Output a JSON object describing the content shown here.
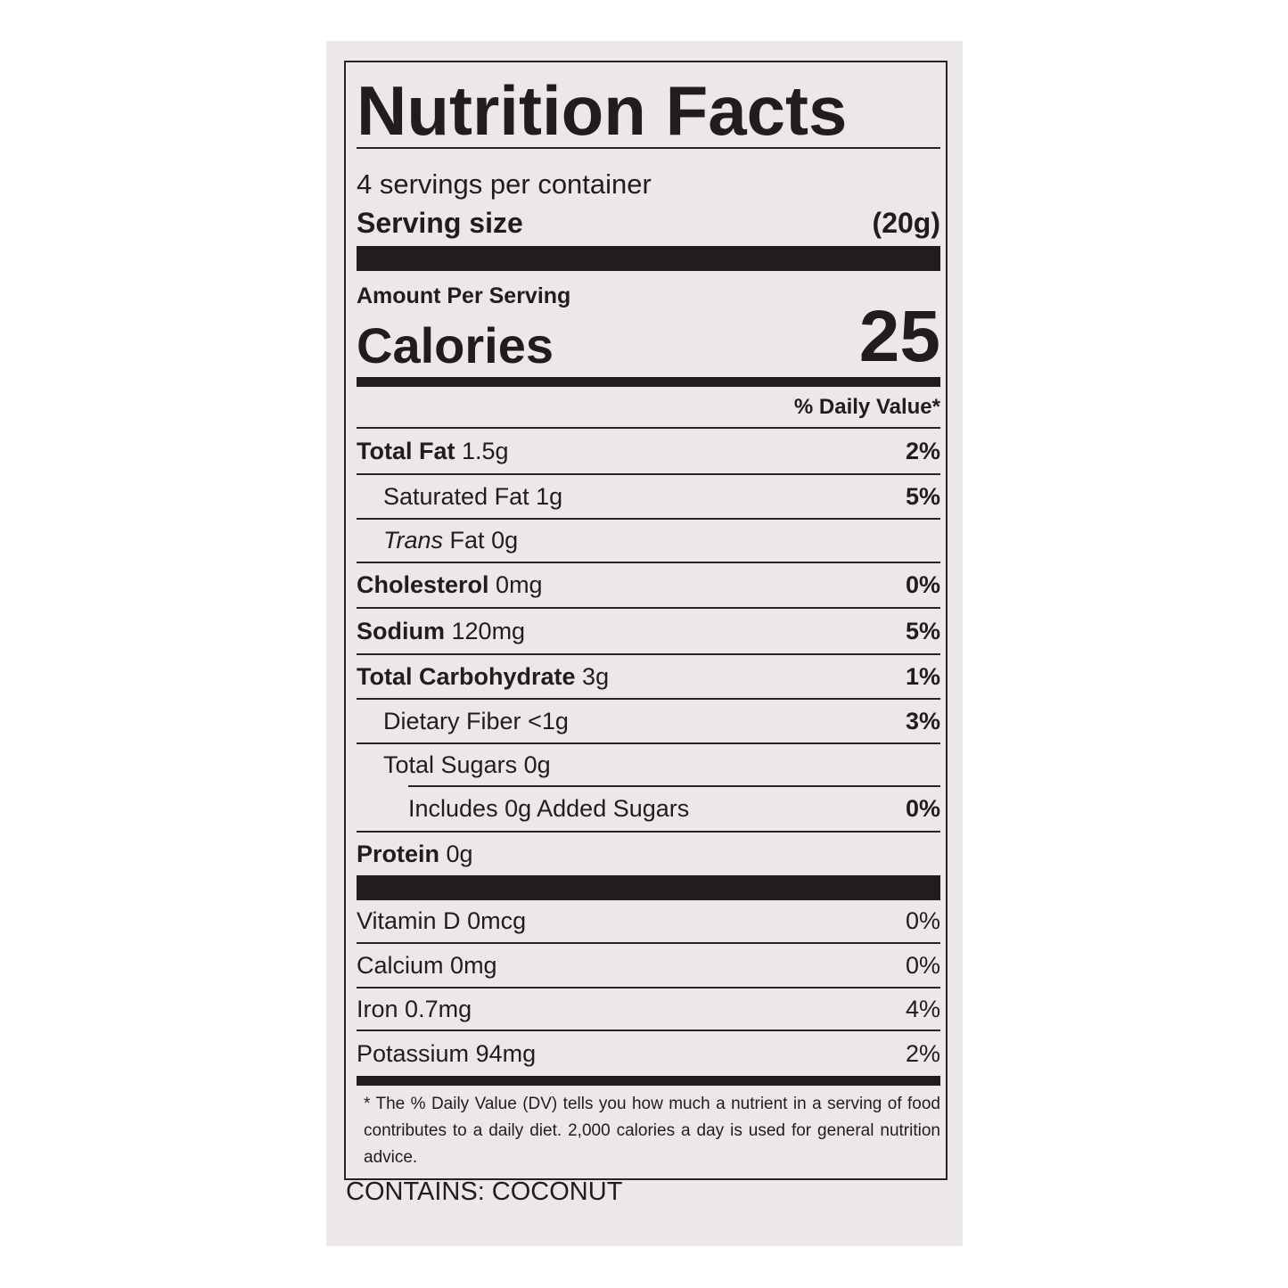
{
  "title": "Nutrition Facts",
  "servings_per_container": "4 servings per container",
  "serving_size": {
    "label": "Serving size",
    "value": "(20g)"
  },
  "amount_per_serving": "Amount Per Serving",
  "calories": {
    "label": "Calories",
    "value": "25"
  },
  "daily_value_header": "% Daily Value*",
  "nutrients": [
    {
      "name": "Total Fat",
      "amount": "1.5g",
      "dv": "2%"
    },
    {
      "name": "Saturated Fat",
      "amount": "1g",
      "dv": "5%"
    },
    {
      "name": "Trans",
      "name_suffix": "Fat",
      "amount": "0g",
      "dv": ""
    },
    {
      "name": "Cholesterol",
      "amount": "0mg",
      "dv": "0%"
    },
    {
      "name": "Sodium",
      "amount": "120mg",
      "dv": "5%"
    },
    {
      "name": "Total Carbohydrate",
      "amount": "3g",
      "dv": "1%"
    },
    {
      "name": "Dietary Fiber",
      "amount": "<1g",
      "dv": "3%"
    },
    {
      "name": "Total Sugars",
      "amount": "0g",
      "dv": ""
    },
    {
      "name": "Includes",
      "amount": "0g Added Sugars",
      "dv": "0%"
    },
    {
      "name": "Protein",
      "amount": "0g",
      "dv": ""
    }
  ],
  "vitamins": [
    {
      "name": "Vitamin D",
      "amount": "0mcg",
      "dv": "0%"
    },
    {
      "name": "Calcium",
      "amount": "0mg",
      "dv": "0%"
    },
    {
      "name": "Iron",
      "amount": "0.7mg",
      "dv": "4%"
    },
    {
      "name": "Potassium",
      "amount": "94mg",
      "dv": "2%"
    }
  ],
  "footnote": "* The % Daily Value (DV) tells you how much a nutrient in a serving of food contributes to a daily diet. 2,000 calories a day is used for general nutrition advice.",
  "allergens": "CONTAINS: COCONUT"
}
